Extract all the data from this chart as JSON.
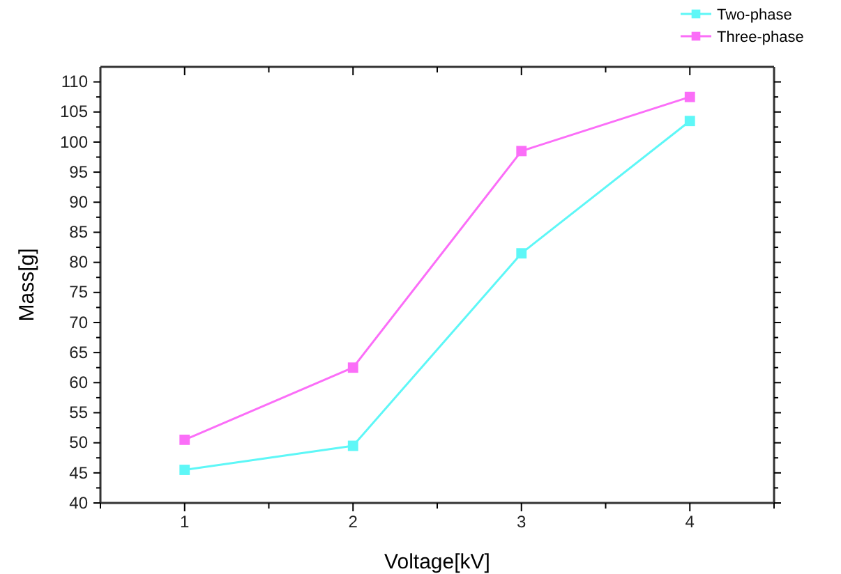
{
  "chart_data": {
    "type": "line",
    "xlabel": "Voltage[kV]",
    "ylabel": "Mass[g]",
    "x": [
      1,
      2,
      3,
      4
    ],
    "series": [
      {
        "name": "Two-phase",
        "color": "#5ef7f7",
        "values": [
          45.5,
          49.5,
          81.5,
          103.5
        ]
      },
      {
        "name": "Three-phase",
        "color": "#fb6ef8",
        "values": [
          50.5,
          62.5,
          98.5,
          107.5
        ]
      }
    ],
    "xlim": [
      0.5,
      4.5
    ],
    "xticks": [
      {
        "value": 0.5,
        "label": null
      },
      1,
      {
        "value": 1.5,
        "label": null
      },
      2,
      {
        "value": 2.5,
        "label": null
      },
      3,
      {
        "value": 3.5,
        "label": null
      },
      4,
      {
        "value": 4.5,
        "label": null
      }
    ],
    "ylim": [
      40,
      112.5
    ],
    "yticks": [
      40,
      {
        "value": 42.5,
        "label": null
      },
      45,
      {
        "value": 47.5,
        "label": null
      },
      50,
      {
        "value": 52.5,
        "label": null
      },
      55,
      {
        "value": 57.5,
        "label": null
      },
      60,
      {
        "value": 62.5,
        "label": null
      },
      65,
      {
        "value": 67.5,
        "label": null
      },
      70,
      {
        "value": 72.5,
        "label": null
      },
      75,
      {
        "value": 77.5,
        "label": null
      },
      80,
      {
        "value": 82.5,
        "label": null
      },
      85,
      {
        "value": 87.5,
        "label": null
      },
      90,
      {
        "value": 92.5,
        "label": null
      },
      95,
      {
        "value": 97.5,
        "label": null
      },
      100,
      {
        "value": 102.5,
        "label": null
      },
      105,
      {
        "value": 107.5,
        "label": null
      },
      110
    ],
    "grid": false,
    "legend": "top right",
    "marker": "square",
    "line_style": "solid"
  }
}
